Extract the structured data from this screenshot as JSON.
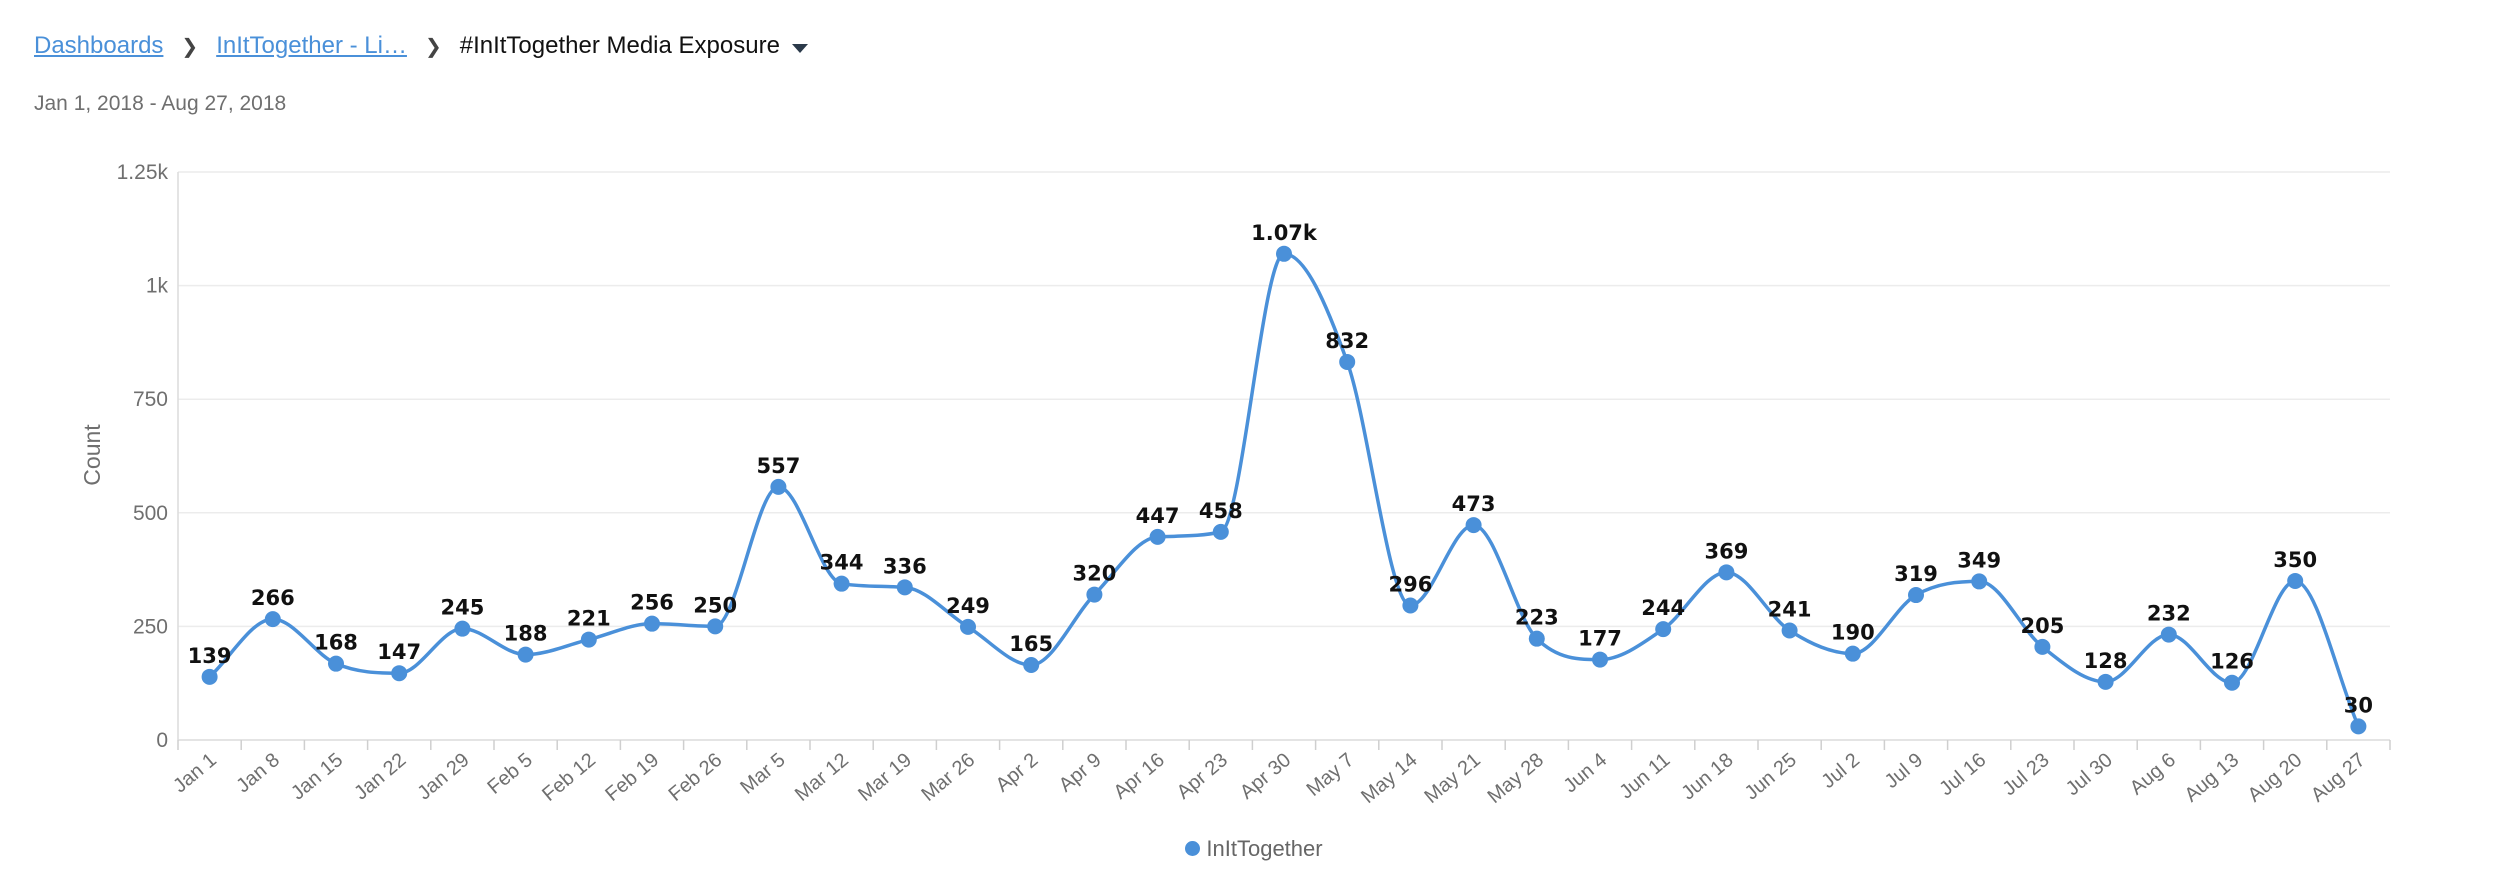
{
  "breadcrumb": {
    "items": [
      "Dashboards",
      "InItTogether - Li…"
    ],
    "current": "#InItTogether Media Exposure"
  },
  "date_range": "Jan 1, 2018 - Aug 27, 2018",
  "colors": {
    "series": "#4a90d9",
    "grid": "#ececec",
    "axis_text": "#6f6f6f"
  },
  "chart_data": {
    "type": "line",
    "title": "",
    "xlabel": "",
    "ylabel": "Count",
    "ylim": [
      0,
      1250
    ],
    "yticks": [
      0,
      250,
      500,
      750,
      1000,
      1250
    ],
    "ytick_labels": [
      "0",
      "250",
      "500",
      "750",
      "1k",
      "1.25k"
    ],
    "grid": true,
    "legend_position": "bottom-center",
    "categories": [
      "Jan 1",
      "Jan 8",
      "Jan 15",
      "Jan 22",
      "Jan 29",
      "Feb 5",
      "Feb 12",
      "Feb 19",
      "Feb 26",
      "Mar 5",
      "Mar 12",
      "Mar 19",
      "Mar 26",
      "Apr 2",
      "Apr 9",
      "Apr 16",
      "Apr 23",
      "Apr 30",
      "May 7",
      "May 14",
      "May 21",
      "May 28",
      "Jun 4",
      "Jun 11",
      "Jun 18",
      "Jun 25",
      "Jul 2",
      "Jul 9",
      "Jul 16",
      "Jul 23",
      "Jul 30",
      "Aug 6",
      "Aug 13",
      "Aug 20",
      "Aug 27"
    ],
    "series": [
      {
        "name": "InItTogether",
        "values": [
          139,
          266,
          168,
          147,
          245,
          188,
          221,
          256,
          250,
          557,
          344,
          336,
          249,
          165,
          320,
          447,
          458,
          1070,
          832,
          296,
          473,
          223,
          177,
          244,
          369,
          241,
          190,
          319,
          349,
          205,
          128,
          232,
          126,
          350,
          30
        ],
        "labels": [
          "139",
          "266",
          "168",
          "147",
          "245",
          "188",
          "221",
          "256",
          "250",
          "557",
          "344",
          "336",
          "249",
          "165",
          "320",
          "447",
          "458",
          "1.07k",
          "832",
          "296",
          "473",
          "223",
          "177",
          "244",
          "369",
          "241",
          "190",
          "319",
          "349",
          "205",
          "128",
          "232",
          "126",
          "350",
          "30"
        ]
      }
    ]
  }
}
